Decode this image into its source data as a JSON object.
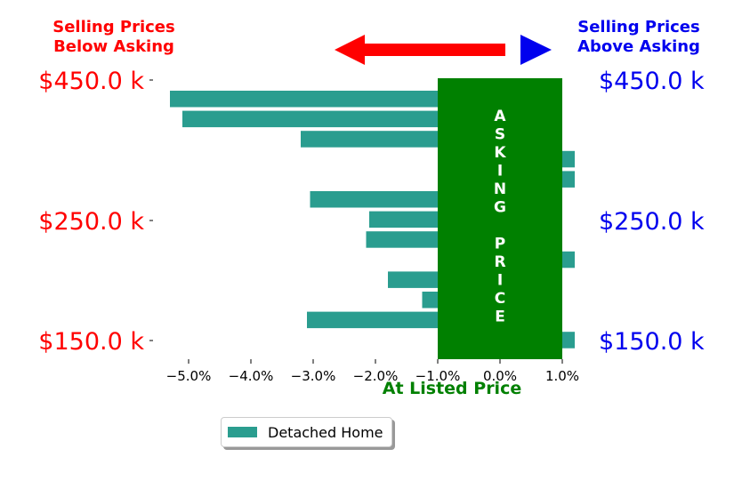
{
  "header": {
    "left_line1": "Selling Prices",
    "left_line2": "Below Asking",
    "right_line1": "Selling Prices",
    "right_line2": "Above Asking"
  },
  "colors": {
    "below": "#ff0000",
    "above": "#0000ee",
    "bar": "#2a9d8f",
    "asking_box": "#008000",
    "asking_text": "#ffffff"
  },
  "asking_label": [
    "A",
    "S",
    "K",
    "I",
    "N",
    "G",
    "",
    "P",
    "R",
    "I",
    "C",
    "E"
  ],
  "legend": {
    "label": "Detached Home"
  },
  "chart_data": {
    "type": "bar",
    "orientation": "horizontal",
    "xlabel": "At Listed Price",
    "x_ticks": [
      "−5.0%",
      "−4.0%",
      "−3.0%",
      "−2.0%",
      "−1.0%",
      "0.0%",
      "1.0%"
    ],
    "xlim": [
      -5.4,
      1.4
    ],
    "y_ticks_left": [
      "$450.0 k",
      "$250.0 k",
      "$150.0 k"
    ],
    "y_ticks_right": [
      "$450.0 k",
      "$250.0 k",
      "$150.0 k"
    ],
    "series": [
      {
        "name": "Detached Home",
        "values": [
          -5.3,
          -5.1,
          -3.2,
          1.2,
          1.2,
          -3.05,
          -2.1,
          -2.15,
          1.2,
          -1.8,
          -1.25,
          -3.1,
          1.2
        ]
      }
    ]
  }
}
